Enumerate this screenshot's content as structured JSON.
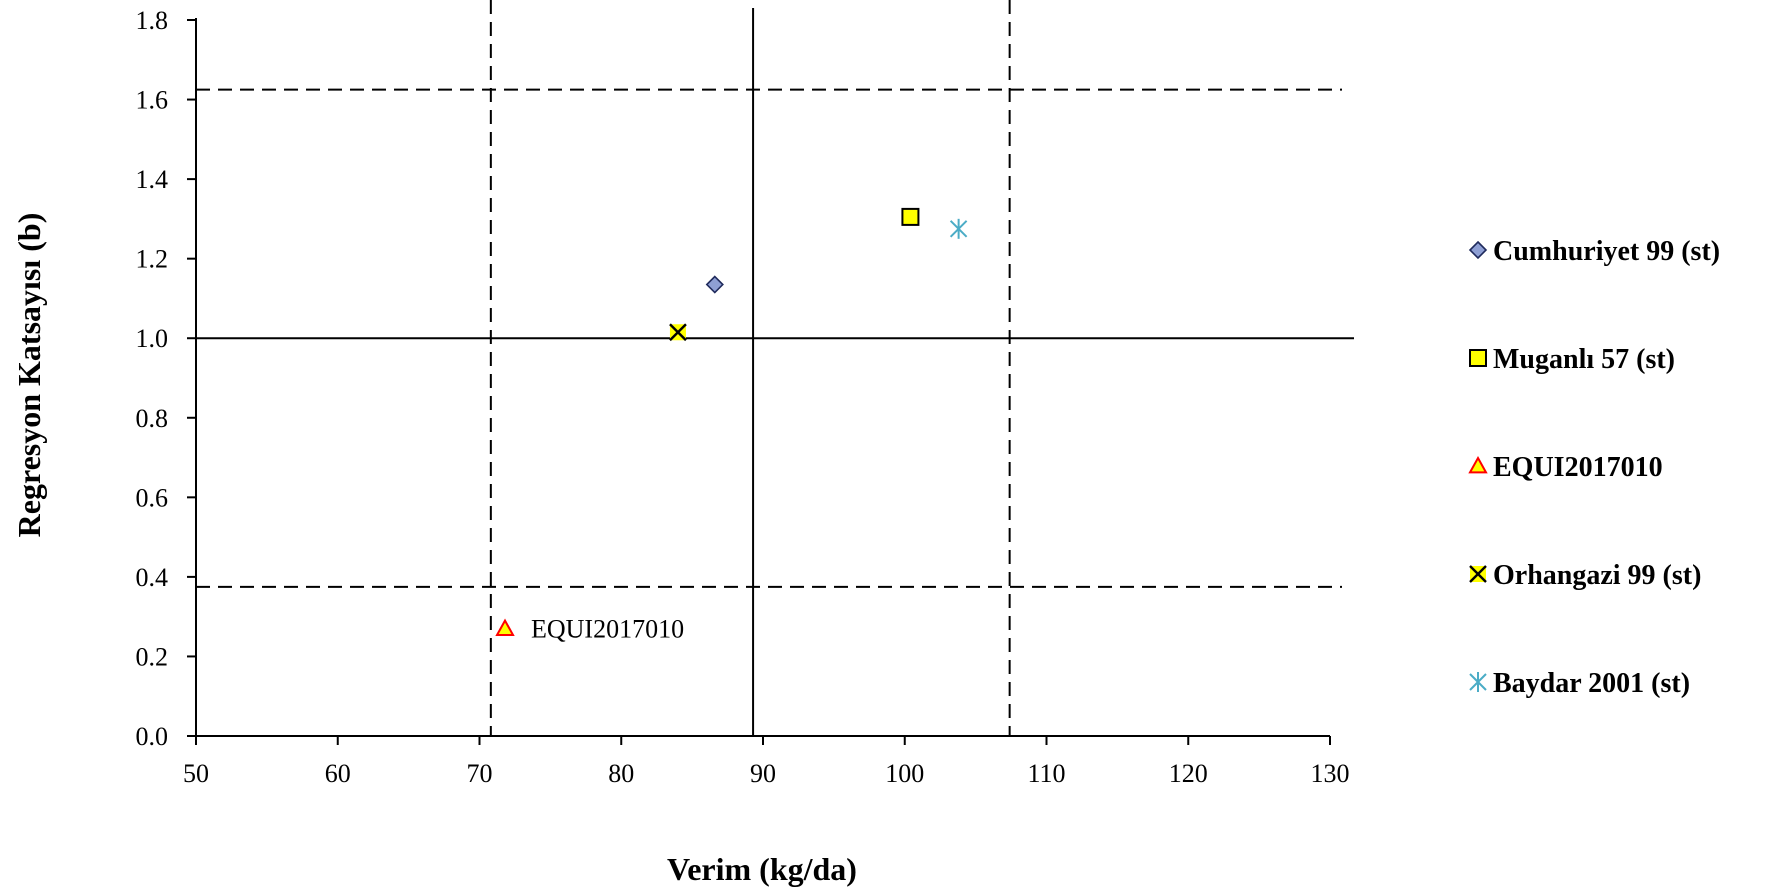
{
  "chart_data": {
    "type": "scatter",
    "xlabel": "Verim (kg/da)",
    "ylabel": "Regresyon Katsayısı (b)",
    "xlim": [
      50,
      130
    ],
    "ylim": [
      0,
      1.8
    ],
    "xticks": [
      50,
      60,
      70,
      80,
      90,
      100,
      110,
      120,
      130
    ],
    "xtick_labels": [
      "50",
      "60",
      "70",
      "80",
      "90",
      "100",
      "110",
      "120",
      "130"
    ],
    "yticks": [
      0,
      0.2,
      0.4,
      0.6,
      0.8,
      1.0,
      1.2,
      1.4,
      1.6,
      1.8
    ],
    "ytick_labels": [
      "0.0",
      "0.2",
      "0.4",
      "0.6",
      "0.8",
      "1.0",
      "1.2",
      "1.4",
      "1.6",
      "1.8"
    ],
    "grid": false,
    "legend_position": "right",
    "series": [
      {
        "name": "Cumhuriyet 99 (st)",
        "marker": "diamond",
        "color": "#8e9fd4",
        "stroke": "#1f2a5c",
        "x": 86.6,
        "y": 1.135
      },
      {
        "name": "Muganlı 57 (st)",
        "marker": "square",
        "color": "#ffff00",
        "stroke": "#000000",
        "x": 100.4,
        "y": 1.305
      },
      {
        "name": "EQUI2017010",
        "marker": "triangle",
        "color": "#ffff00",
        "stroke": "#ff0000",
        "x": 71.8,
        "y": 0.27
      },
      {
        "name": "Orhangazi 99 (st)",
        "marker": "x",
        "color": "#ffff00",
        "stroke": "#000000",
        "x": 84.0,
        "y": 1.015
      },
      {
        "name": "Baydar 2001 (st)",
        "marker": "star",
        "color": "#4bacc6",
        "stroke": "#4bacc6",
        "x": 103.8,
        "y": 1.275
      }
    ],
    "annotations": [
      {
        "text": "EQUI2017010",
        "x": 71.8,
        "y": 0.27
      }
    ],
    "reference_lines": {
      "vertical_solid": 89.3,
      "horizontal_solid": 1.0,
      "vertical_dashed": [
        70.8,
        107.4
      ],
      "horizontal_dashed": [
        1.625,
        0.375
      ]
    }
  }
}
